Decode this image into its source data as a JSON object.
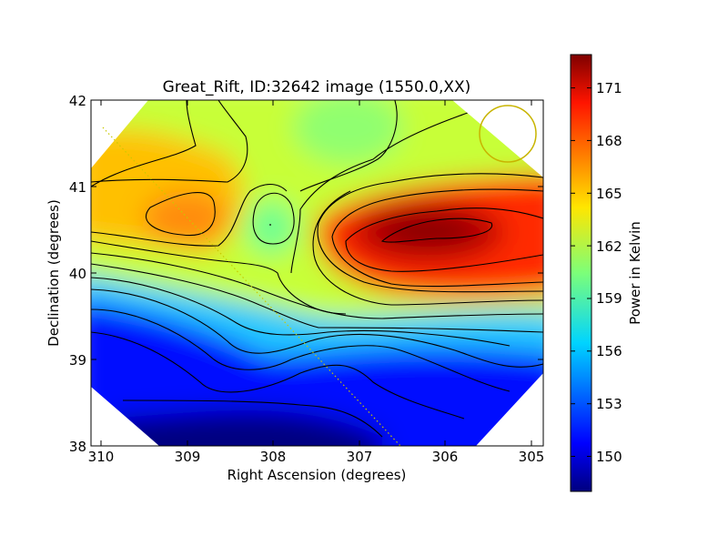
{
  "chart_data": {
    "type": "heatmap",
    "title": "Great_Rift, ID:32642 image (1550.0,XX)",
    "xlabel": "Right Ascension (degrees)",
    "ylabel": "Declination (degrees)",
    "colorbar_label": "Power in Kelvin",
    "xlim": [
      310.15,
      304.9
    ],
    "ylim": [
      38,
      42
    ],
    "x_ticks": [
      310,
      309,
      308,
      307,
      306,
      305
    ],
    "y_ticks": [
      38,
      39,
      40,
      41,
      42
    ],
    "colorbar_range": [
      148.2,
      173.1
    ],
    "colorbar_ticks": [
      150,
      153,
      156,
      159,
      162,
      165,
      168,
      171
    ],
    "colormap": "jet",
    "grid": false,
    "coverage": "diamond-shaped footprint",
    "features": [
      {
        "label": "peak",
        "ra": 306.2,
        "dec": 40.5,
        "value": 173
      },
      {
        "label": "warm region",
        "ra": 309.2,
        "dec": 40.65,
        "value": 165.5
      },
      {
        "label": "local minimum",
        "ra": 308.0,
        "dec": 40.55,
        "value": 158.5
      },
      {
        "label": "low region",
        "ra": 307.0,
        "dec": 38.1,
        "value": 148.5
      }
    ],
    "beam_circle": {
      "ra": 305.2,
      "dec": 41.6,
      "color": "#c8b400"
    },
    "scan_line": {
      "from": [
        309.95,
        41.7
      ],
      "to": [
        306.5,
        38.0
      ],
      "color": "#c8c800"
    }
  }
}
